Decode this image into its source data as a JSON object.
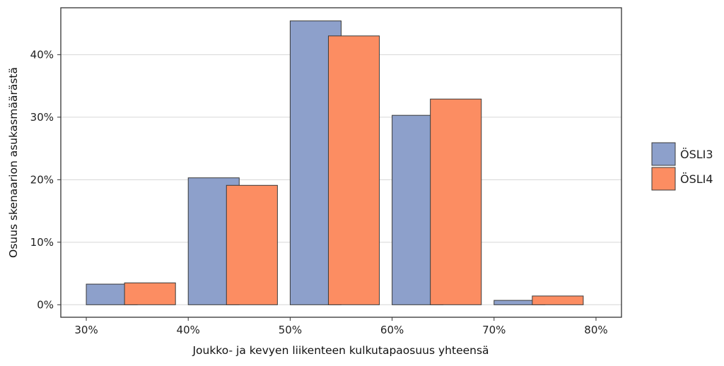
{
  "chart_data": {
    "type": "bar",
    "title": "",
    "xlabel": "Joukko- ja kevyen liikenteen kulkutapaosuus yhteensä",
    "ylabel": "Osuus skenaarion asukasmäärästä",
    "x_ticks": [
      "30%",
      "40%",
      "50%",
      "60%",
      "70%",
      "80%"
    ],
    "x_tick_values": [
      30,
      40,
      50,
      60,
      70,
      80
    ],
    "xlim": [
      27.5,
      82.5
    ],
    "y_ticks": [
      "0%",
      "10%",
      "20%",
      "30%",
      "40%"
    ],
    "y_tick_values": [
      0,
      10,
      20,
      30,
      40
    ],
    "ylim": [
      -2,
      47.5
    ],
    "grid": "horizontal",
    "legend_position": "right",
    "bins": [
      [
        30,
        40
      ],
      [
        40,
        50
      ],
      [
        50,
        60
      ],
      [
        60,
        70
      ],
      [
        70,
        80
      ]
    ],
    "series": [
      {
        "name": "ÖSLI3",
        "color": "#8da0cb",
        "values": [
          3.3,
          20.3,
          45.4,
          30.3,
          0.7
        ]
      },
      {
        "name": "ÖSLI4",
        "color": "#fc8d62",
        "values": [
          3.5,
          19.1,
          43.0,
          32.9,
          1.4
        ]
      }
    ]
  }
}
